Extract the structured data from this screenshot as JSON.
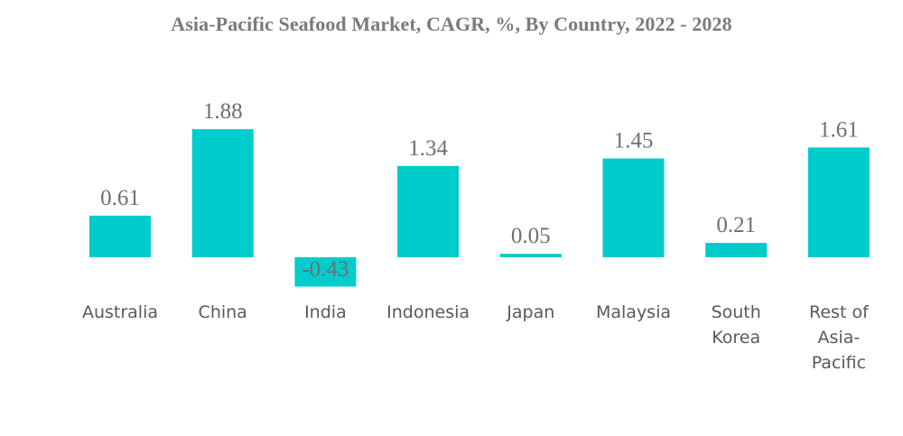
{
  "chart_data": {
    "type": "bar",
    "title": "Asia-Pacific Seafood Market, CAGR, %, By Country, 2022 - 2028",
    "categories": [
      "Australia",
      "China",
      "India",
      "Indonesia",
      "Japan",
      "Malaysia",
      "South Korea",
      "Rest of Asia-Pacific"
    ],
    "category_lines": [
      [
        "Australia"
      ],
      [
        "China"
      ],
      [
        "India"
      ],
      [
        "Indonesia"
      ],
      [
        "Japan"
      ],
      [
        "Malaysia"
      ],
      [
        "South",
        "Korea"
      ],
      [
        "Rest of",
        "Asia-",
        "Pacific"
      ]
    ],
    "values": [
      0.61,
      1.88,
      -0.43,
      1.34,
      0.05,
      1.45,
      0.21,
      1.61
    ],
    "value_labels": [
      "0.61",
      "1.88",
      "-0.43",
      "1.34",
      "0.05",
      "1.45",
      "0.21",
      "1.61"
    ],
    "xlabel": "",
    "ylabel": "",
    "grid": false,
    "legend": "none",
    "bar_color": "#00cccc"
  }
}
